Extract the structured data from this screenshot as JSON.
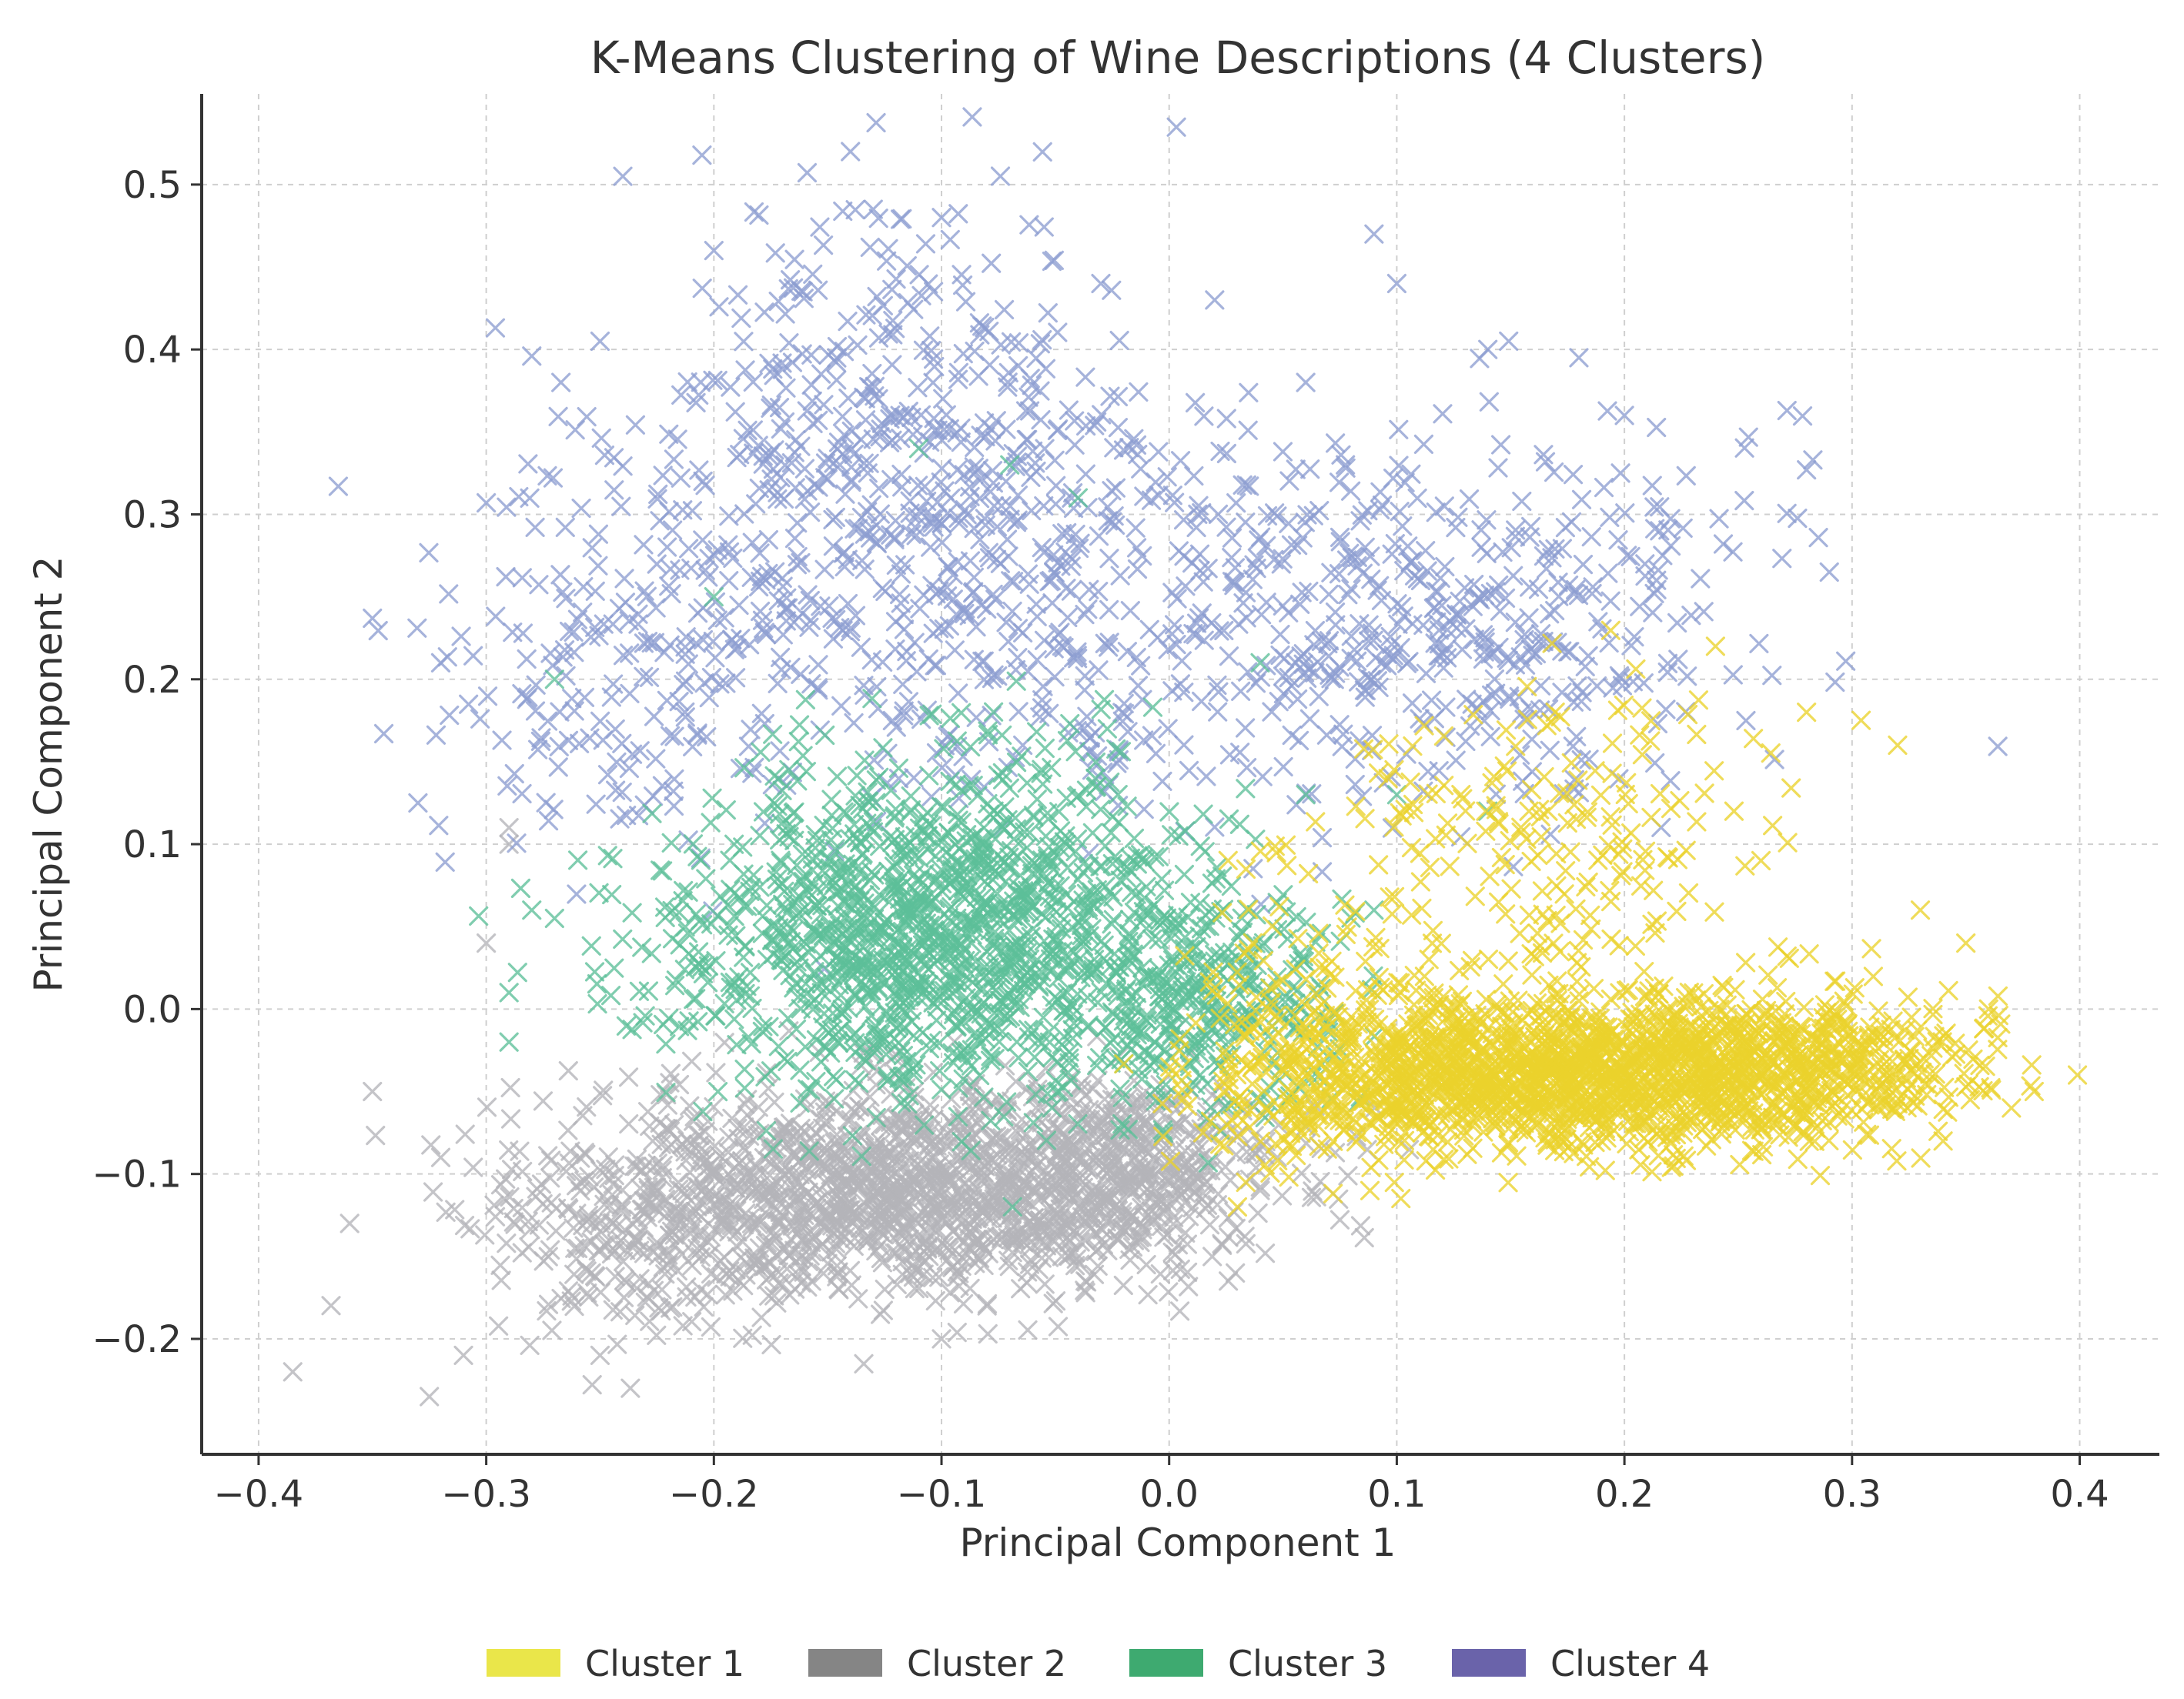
{
  "chart_data": {
    "type": "scatter",
    "title": "K-Means Clustering of Wine Descriptions (4 Clusters)",
    "xlabel": "Principal Component 1",
    "ylabel": "Principal Component 2",
    "xlim": [
      -0.425,
      0.435
    ],
    "ylim": [
      -0.27,
      0.555
    ],
    "xticks": [
      -0.4,
      -0.3,
      -0.2,
      -0.1,
      0.0,
      0.1,
      0.2,
      0.3,
      0.4
    ],
    "xtick_labels": [
      "−0.4",
      "−0.3",
      "−0.2",
      "−0.1",
      "0.0",
      "0.1",
      "0.2",
      "0.3",
      "0.4"
    ],
    "yticks": [
      -0.2,
      -0.1,
      0.0,
      0.1,
      0.2,
      0.3,
      0.4,
      0.5
    ],
    "ytick_labels": [
      "−0.2",
      "−0.1",
      "0.0",
      "0.1",
      "0.2",
      "0.3",
      "0.4",
      "0.5"
    ],
    "grid": true,
    "marker": "x",
    "legend_position": "bottom-center",
    "series": [
      {
        "name": "Cluster 1",
        "color": "#ead22b",
        "legend_color": "#eae64a",
        "cloud": [
          {
            "n": 1500,
            "cx": 0.17,
            "cy": -0.04,
            "sx": 0.065,
            "sy": 0.022
          },
          {
            "n": 350,
            "cx": 0.28,
            "cy": -0.035,
            "sx": 0.04,
            "sy": 0.022
          },
          {
            "n": 230,
            "cx": 0.16,
            "cy": 0.1,
            "sx": 0.055,
            "sy": 0.05
          },
          {
            "n": 160,
            "cx": 0.06,
            "cy": -0.03,
            "sx": 0.028,
            "sy": 0.04
          }
        ],
        "points": [
          [
            0.399,
            -0.04
          ],
          [
            0.37,
            -0.06
          ],
          [
            0.36,
            0.0
          ],
          [
            0.35,
            0.04
          ],
          [
            0.33,
            0.06
          ],
          [
            0.32,
            0.16
          ],
          [
            0.24,
            0.22
          ],
          [
            0.38,
            -0.05
          ],
          [
            0.03,
            -0.12
          ],
          [
            0.28,
            0.18
          ],
          [
            0.26,
            0.09
          ],
          [
            0.34,
            -0.08
          ]
        ]
      },
      {
        "name": "Cluster 2",
        "color": "#b4b4b9",
        "legend_color": "#858585",
        "cloud": [
          {
            "n": 1300,
            "cx": -0.12,
            "cy": -0.11,
            "sx": 0.07,
            "sy": 0.032
          },
          {
            "n": 350,
            "cx": -0.02,
            "cy": -0.095,
            "sx": 0.035,
            "sy": 0.025
          },
          {
            "n": 160,
            "cx": -0.24,
            "cy": -0.14,
            "sx": 0.04,
            "sy": 0.04
          }
        ],
        "points": [
          [
            -0.385,
            -0.22
          ],
          [
            -0.325,
            -0.235
          ],
          [
            -0.35,
            -0.05
          ],
          [
            -0.36,
            -0.13
          ],
          [
            -0.32,
            -0.09
          ],
          [
            -0.3,
            0.04
          ],
          [
            -0.29,
            0.11
          ],
          [
            -0.29,
            0.1
          ],
          [
            -0.1,
            -0.2
          ],
          [
            -0.08,
            -0.18
          ],
          [
            0.04,
            -0.11
          ],
          [
            -0.01,
            -0.155
          ],
          [
            -0.31,
            -0.21
          ],
          [
            -0.25,
            -0.21
          ]
        ]
      },
      {
        "name": "Cluster 3",
        "color": "#5cbf99",
        "legend_color": "#3eaa70",
        "cloud": [
          {
            "n": 1100,
            "cx": -0.09,
            "cy": 0.05,
            "sx": 0.055,
            "sy": 0.05
          },
          {
            "n": 280,
            "cx": 0.02,
            "cy": 0.01,
            "sx": 0.03,
            "sy": 0.035
          },
          {
            "n": 200,
            "cx": -0.16,
            "cy": 0.03,
            "sx": 0.05,
            "sy": 0.04
          }
        ],
        "points": [
          [
            -0.29,
            0.01
          ],
          [
            -0.28,
            0.06
          ],
          [
            -0.27,
            0.055
          ],
          [
            -0.29,
            -0.02
          ],
          [
            -0.27,
            0.2
          ],
          [
            -0.11,
            0.34
          ],
          [
            -0.07,
            0.33
          ],
          [
            -0.04,
            0.31
          ],
          [
            0.06,
            0.13
          ],
          [
            0.1,
            0.13
          ],
          [
            0.09,
            0.06
          ],
          [
            0.14,
            0.12
          ],
          [
            -0.2,
            0.25
          ],
          [
            0.04,
            0.21
          ]
        ]
      },
      {
        "name": "Cluster 4",
        "color": "#8d9dd1",
        "legend_color": "#6a63aa",
        "cloud": [
          {
            "n": 700,
            "cx": -0.12,
            "cy": 0.3,
            "sx": 0.065,
            "sy": 0.085
          },
          {
            "n": 360,
            "cx": 0.14,
            "cy": 0.24,
            "sx": 0.06,
            "sy": 0.06
          },
          {
            "n": 140,
            "cx": -0.25,
            "cy": 0.2,
            "sx": 0.035,
            "sy": 0.06
          },
          {
            "n": 200,
            "cx": 0.02,
            "cy": 0.23,
            "sx": 0.05,
            "sy": 0.06
          }
        ],
        "points": [
          [
            -0.365,
            0.317
          ],
          [
            -0.35,
            0.237
          ],
          [
            -0.345,
            0.167
          ],
          [
            -0.32,
            0.21
          ],
          [
            -0.33,
            0.125
          ],
          [
            -0.3,
            0.307
          ],
          [
            -0.14,
            0.52
          ],
          [
            -0.24,
            0.505
          ],
          [
            -0.2,
            0.46
          ],
          [
            0.09,
            0.47
          ],
          [
            0.1,
            0.44
          ],
          [
            0.28,
            0.327
          ],
          [
            0.29,
            0.265
          ],
          [
            0.18,
            0.395
          ],
          [
            0.06,
            0.38
          ],
          [
            0.2,
            0.36
          ],
          [
            0.14,
            0.4
          ],
          [
            0.02,
            0.43
          ],
          [
            -0.03,
            0.44
          ],
          [
            -0.1,
            0.48
          ],
          [
            -0.13,
            0.485
          ],
          [
            -0.25,
            0.405
          ],
          [
            -0.28,
            0.396
          ]
        ]
      }
    ]
  }
}
